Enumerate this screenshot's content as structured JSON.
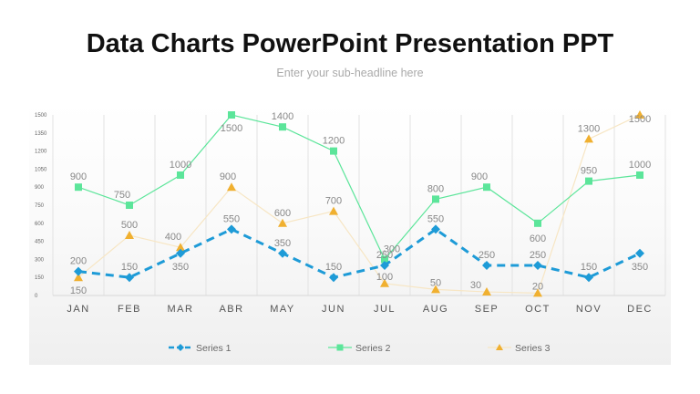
{
  "slide": {
    "title": "Data Charts PowerPoint Presentation PPT",
    "subtitle": "Enter your sub-headline here"
  },
  "chart_data": {
    "type": "line",
    "categories": [
      "JAN",
      "FEB",
      "MAR",
      "ABR",
      "MAY",
      "JUN",
      "JUL",
      "AUG",
      "SEP",
      "OCT",
      "NOV",
      "DEC"
    ],
    "yticks": [
      0,
      150,
      300,
      450,
      600,
      750,
      900,
      1050,
      1200,
      1350,
      1500
    ],
    "ylim": [
      0,
      1500
    ],
    "grid": "vertical",
    "legend": "bottom",
    "series": [
      {
        "name": "Series 1",
        "color": "#1e9bd7",
        "style": "dashed",
        "marker": "diamond",
        "values": [
          200,
          150,
          350,
          550,
          350,
          150,
          250,
          550,
          250,
          250,
          150,
          350
        ]
      },
      {
        "name": "Series 2",
        "color": "#5ce59a",
        "style": "solid",
        "marker": "square",
        "values": [
          900,
          750,
          1000,
          1500,
          1400,
          1200,
          300,
          800,
          900,
          600,
          950,
          1000
        ]
      },
      {
        "name": "Series 3",
        "color": "#f0b030",
        "line_color": "#f7e6c4",
        "style": "solid",
        "marker": "triangle",
        "values": [
          150,
          500,
          400,
          900,
          600,
          700,
          100,
          50,
          30,
          20,
          1300,
          1500
        ]
      }
    ]
  }
}
